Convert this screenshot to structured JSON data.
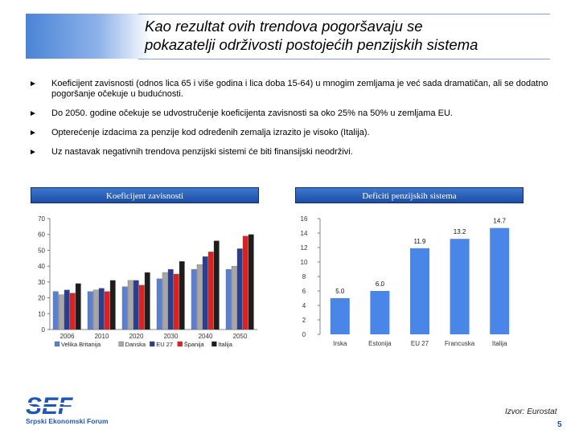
{
  "slide": {
    "title_line1": "Kao rezultat ovih trendova pogoršavaju se",
    "title_line2": "pokazatelji održivosti postojećih penzijskih sistema",
    "bullet_glyph": "►",
    "bullets": [
      "Koeficijent zavisnosti (odnos lica 65 i više godina i lica doba 15-64) u mnogim zemljama je već sada dramatičan, ali se dodatno pogoršanje očekuje u budućnosti.",
      "Do 2050. godine očekuje se udvostručenje koeficijenta zavisnosti sa oko 25% na 50% u zemljama EU.",
      "Opterećenje izdacima za penzije kod određenih zemalja izrazito je visoko (Italija).",
      "Uz nastavak negativnih trendova penzijski sistemi će biti finansijski neodrživi."
    ],
    "left_panel_title": "Koeficijent zavisnosti",
    "right_panel_title": "Deficiti penzijskih sistema",
    "source": "Izvor: Eurostat",
    "page_number": "5",
    "logo": {
      "mark": "SEF",
      "subtitle": "Srpski Ekonomski Forum",
      "color": "#1f57b8"
    }
  },
  "chart_data": [
    {
      "type": "bar",
      "title": "Koeficijent zavisnosti",
      "categories": [
        "2006",
        "2010",
        "2020",
        "2030",
        "2040",
        "2050"
      ],
      "ylim": [
        0,
        70
      ],
      "yticks": [
        0,
        10,
        20,
        30,
        40,
        50,
        60,
        70
      ],
      "legend_position": "bottom",
      "series": [
        {
          "name": "Velika Britanija",
          "color": "#5b7fd1",
          "values": [
            24,
            24,
            27,
            32,
            38,
            38
          ]
        },
        {
          "name": "Danska",
          "color": "#a7a7a7",
          "values": [
            22,
            25,
            31,
            36,
            41,
            40
          ]
        },
        {
          "name": "EU 27",
          "color": "#2b3d8f",
          "values": [
            25,
            26,
            31,
            38,
            46,
            51
          ]
        },
        {
          "name": "Španija",
          "color": "#e02020",
          "values": [
            23,
            24,
            28,
            35,
            49,
            59
          ]
        },
        {
          "name": "Italija",
          "color": "#1d1d1d",
          "values": [
            29,
            31,
            36,
            43,
            56,
            60
          ]
        }
      ]
    },
    {
      "type": "bar",
      "title": "Deficiti penzijskih sistema",
      "categories": [
        "Irska",
        "Estonija",
        "EU 27",
        "Francuska",
        "Italija"
      ],
      "values": [
        5.0,
        6.0,
        11.9,
        13.2,
        14.7
      ],
      "value_labels": [
        "5.0",
        "6.0",
        "11.9",
        "13.2",
        "14.7"
      ],
      "ylim": [
        0,
        16
      ],
      "yticks": [
        0,
        2,
        4,
        6,
        8,
        10,
        12,
        14,
        16
      ],
      "bar_color": "#4a86e8"
    }
  ]
}
